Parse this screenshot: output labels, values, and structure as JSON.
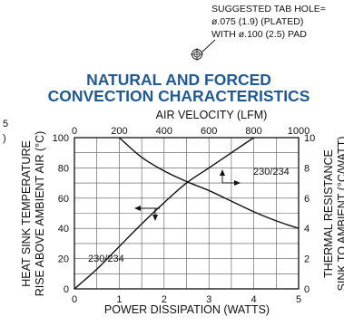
{
  "note": {
    "lines": [
      "SUGGESTED TAB HOLE=",
      "ø.075 (1.9) (PLATED)",
      "WITH ø.100 (2.5) PAD"
    ]
  },
  "edge_fragments": {
    "left": "5",
    "left_paren": ")"
  },
  "chart_data": {
    "type": "line",
    "title": "NATURAL AND FORCED",
    "subtitle": "CONVECTION CHARACTERISTICS",
    "xlabel": "POWER DISSIPATION (WATTS)",
    "x2label": "AIR VELOCITY (LFM)",
    "ylabel": "HEAT SINK TEMPERATURE",
    "ylabel2": "RISE ABOVE AMBIENT AIR (°C)",
    "y2label": "THERMAL RESISTANCE",
    "y2label2": "SINK TO AMBIENT (°C/WATT)",
    "xlim": [
      0,
      5
    ],
    "ylim": [
      0,
      100
    ],
    "x2lim": [
      0,
      1000
    ],
    "y2lim": [
      0,
      10
    ],
    "grid": true,
    "x_ticks": [
      "0",
      "1",
      "2",
      "3",
      "4",
      "5"
    ],
    "y_ticks": [
      "0",
      "20",
      "40",
      "60",
      "80",
      "100"
    ],
    "x2_ticks": [
      "0",
      "200",
      "400",
      "600",
      "800",
      "1000"
    ],
    "y2_ticks": [
      "0",
      "2",
      "4",
      "6",
      "8",
      "10"
    ],
    "series": [
      {
        "name": "230/234",
        "axis": "bottom-left",
        "x": [
          0,
          0.5,
          1,
          1.5,
          2,
          2.5,
          3,
          3.5,
          4
        ],
        "y": [
          0,
          13,
          28,
          43,
          57,
          70,
          80,
          90,
          100
        ]
      },
      {
        "name": "230/234",
        "axis": "top-right",
        "x": [
          200,
          300,
          400,
          500,
          600,
          700,
          800,
          900,
          1000
        ],
        "y": [
          10,
          8.7,
          7.8,
          7.1,
          6.5,
          5.8,
          5.1,
          4.5,
          4.0
        ]
      }
    ]
  }
}
